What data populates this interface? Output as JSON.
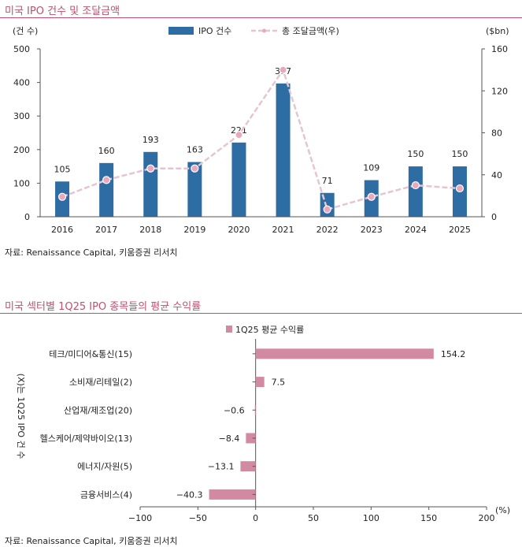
{
  "chart1": {
    "title": "미국 IPO 건수 및 조달금액",
    "source": "자료: Renaissance Capital, 키움증권 리서치",
    "left_unit": "(건 수)",
    "right_unit": "($bn)",
    "legend_bar": "IPO 건수",
    "legend_line": "총 조달금액(우)"
  },
  "chart2": {
    "title": "미국 섹터별 1Q25 IPO 종목들의 평균 수익률",
    "source": "자료: Renaissance Capital, 키움증권 리서치",
    "legend": "1Q25 평균 수익률",
    "y_note": "(X)는 1Q25 IPO 건 수",
    "x_unit": "(%)"
  },
  "colors": {
    "bar": "#2e6ca4",
    "line": "#e4c6d2",
    "line_marker": "#e8a9be",
    "hbar": "#d18aa2",
    "title": "#c0506e"
  },
  "chart_data": [
    {
      "type": "bar",
      "categories": [
        "2016",
        "2017",
        "2018",
        "2019",
        "2020",
        "2021",
        "2022",
        "2023",
        "2024",
        "2025"
      ],
      "series": [
        {
          "name": "IPO 건수",
          "values": [
            105,
            160,
            193,
            163,
            221,
            397,
            71,
            109,
            150,
            150
          ],
          "axis": "left"
        },
        {
          "name": "총 조달금액(우)",
          "type": "line",
          "values": [
            19,
            35,
            46,
            46,
            78,
            140,
            7,
            19,
            30,
            27
          ],
          "axis": "right"
        }
      ],
      "ylim_left": [
        0,
        500
      ],
      "yticks_left": [
        "0",
        "100",
        "200",
        "300",
        "400",
        "500"
      ],
      "ylim_right": [
        0,
        160
      ],
      "yticks_right": [
        "0",
        "40",
        "80",
        "120",
        "160"
      ],
      "legend_position": "top"
    },
    {
      "type": "bar",
      "orientation": "horizontal",
      "categories": [
        "테크/미디어&통신(15)",
        "소비재/리테일(2)",
        "산업재/제조업(20)",
        "헬스케어/제약바이오(13)",
        "에너지/자원(5)",
        "금융서비스(4)"
      ],
      "values": [
        154.2,
        7.5,
        -0.6,
        -8.4,
        -13.1,
        -40.3
      ],
      "labels": [
        "154.2",
        "7.5",
        "−0.6",
        "−8.4",
        "−13.1",
        "−40.3"
      ],
      "xlim": [
        -100,
        200
      ],
      "xticks": [
        "−100",
        "−50",
        "0",
        "50",
        "100",
        "150",
        "200"
      ],
      "legend_position": "top"
    }
  ]
}
